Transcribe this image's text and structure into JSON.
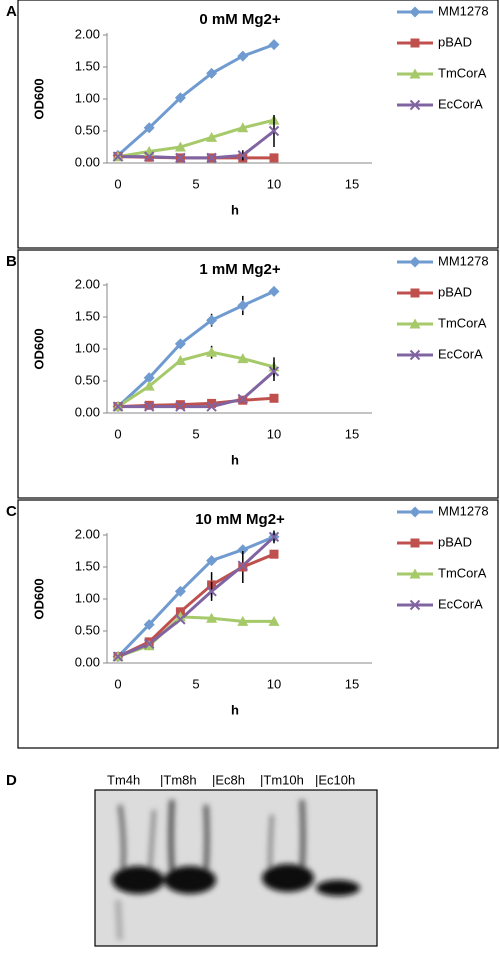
{
  "chart_data": [
    {
      "type": "line",
      "panel": "A",
      "title": "0 mM Mg2+",
      "x_label": "h",
      "y_label": "OD600",
      "x": [
        0,
        2,
        4,
        6,
        8,
        10
      ],
      "xlim": [
        0,
        15
      ],
      "xticks": [
        0,
        5,
        10,
        15
      ],
      "ylim": [
        0,
        2
      ],
      "yticks": [
        {
          "value": 0,
          "label": "0.00"
        },
        {
          "value": 0.5,
          "label": "0.50"
        },
        {
          "value": 1,
          "label": "1.00"
        },
        {
          "value": 1.5,
          "label": "1.50"
        },
        {
          "value": 2,
          "label": "2.00"
        }
      ],
      "legend": "right",
      "grid": false,
      "series": [
        {
          "name": "MM1278",
          "color": "#6f9bd1",
          "marker": "diamond",
          "values": [
            0.12,
            0.55,
            1.02,
            1.4,
            1.67,
            1.85
          ]
        },
        {
          "name": "pBAD",
          "color": "#c0504d",
          "marker": "square",
          "values": [
            0.1,
            0.09,
            0.08,
            0.08,
            0.08,
            0.08
          ]
        },
        {
          "name": "TmCorA",
          "color": "#a6c96a",
          "marker": "triangle",
          "values": [
            0.1,
            0.18,
            0.25,
            0.4,
            0.55,
            0.67
          ]
        },
        {
          "name": "EcCorA",
          "color": "#8064a2",
          "marker": "x",
          "values": [
            0.1,
            0.1,
            0.08,
            0.08,
            0.12,
            0.5
          ],
          "errors": [
            null,
            null,
            null,
            null,
            0.08,
            0.25
          ]
        }
      ]
    },
    {
      "type": "line",
      "panel": "B",
      "title": "1 mM Mg2+",
      "x_label": "h",
      "y_label": "OD600",
      "x": [
        0,
        2,
        4,
        6,
        8,
        10
      ],
      "xlim": [
        0,
        15
      ],
      "xticks": [
        0,
        5,
        10,
        15
      ],
      "ylim": [
        0,
        2
      ],
      "yticks": [
        {
          "value": 0,
          "label": "0.00"
        },
        {
          "value": 0.5,
          "label": "0.50"
        },
        {
          "value": 1,
          "label": "1.00"
        },
        {
          "value": 1.5,
          "label": "1.50"
        },
        {
          "value": 2,
          "label": "2.00"
        }
      ],
      "legend": "right",
      "grid": false,
      "series": [
        {
          "name": "MM1278",
          "color": "#6f9bd1",
          "marker": "diamond",
          "values": [
            0.1,
            0.55,
            1.08,
            1.45,
            1.68,
            1.9
          ],
          "errors": [
            null,
            null,
            null,
            0.1,
            0.15,
            null
          ]
        },
        {
          "name": "pBAD",
          "color": "#c0504d",
          "marker": "square",
          "values": [
            0.1,
            0.12,
            0.13,
            0.15,
            0.2,
            0.23
          ]
        },
        {
          "name": "TmCorA",
          "color": "#a6c96a",
          "marker": "triangle",
          "values": [
            0.1,
            0.42,
            0.82,
            0.95,
            0.85,
            0.72
          ],
          "errors": [
            null,
            null,
            null,
            0.1,
            null,
            0.15
          ]
        },
        {
          "name": "EcCorA",
          "color": "#8064a2",
          "marker": "x",
          "values": [
            0.1,
            0.1,
            0.1,
            0.1,
            0.22,
            0.65
          ],
          "errors": [
            null,
            null,
            null,
            null,
            null,
            0.15
          ]
        }
      ]
    },
    {
      "type": "line",
      "panel": "C",
      "title": "10 mM Mg2+",
      "x_label": "h",
      "y_label": "OD600",
      "x": [
        0,
        2,
        4,
        6,
        8,
        10
      ],
      "xlim": [
        0,
        15
      ],
      "xticks": [
        0,
        5,
        10,
        15
      ],
      "ylim": [
        0,
        2
      ],
      "yticks": [
        {
          "value": 0,
          "label": "0.00"
        },
        {
          "value": 0.5,
          "label": "0.50"
        },
        {
          "value": 1,
          "label": "1.00"
        },
        {
          "value": 1.5,
          "label": "1.50"
        },
        {
          "value": 2,
          "label": "2.00"
        }
      ],
      "legend": "right",
      "grid": false,
      "series": [
        {
          "name": "MM1278",
          "color": "#6f9bd1",
          "marker": "diamond",
          "values": [
            0.1,
            0.6,
            1.12,
            1.6,
            1.77,
            1.97
          ]
        },
        {
          "name": "pBAD",
          "color": "#c0504d",
          "marker": "square",
          "values": [
            0.1,
            0.33,
            0.8,
            1.22,
            1.5,
            1.7
          ],
          "errors": [
            null,
            null,
            null,
            0.2,
            0.25,
            null
          ]
        },
        {
          "name": "TmCorA",
          "color": "#a6c96a",
          "marker": "triangle",
          "values": [
            0.1,
            0.27,
            0.72,
            0.7,
            0.65,
            0.65
          ]
        },
        {
          "name": "EcCorA",
          "color": "#8064a2",
          "marker": "x",
          "values": [
            0.1,
            0.3,
            0.68,
            1.12,
            1.52,
            1.97
          ],
          "errors": [
            null,
            null,
            null,
            0.15,
            null,
            0.1
          ]
        }
      ]
    }
  ],
  "blot": {
    "panel": "D",
    "lanes": [
      "Tm4h",
      "|Tm8h",
      "|Ec8h",
      "|Tm10h",
      "|Ec10h"
    ]
  }
}
